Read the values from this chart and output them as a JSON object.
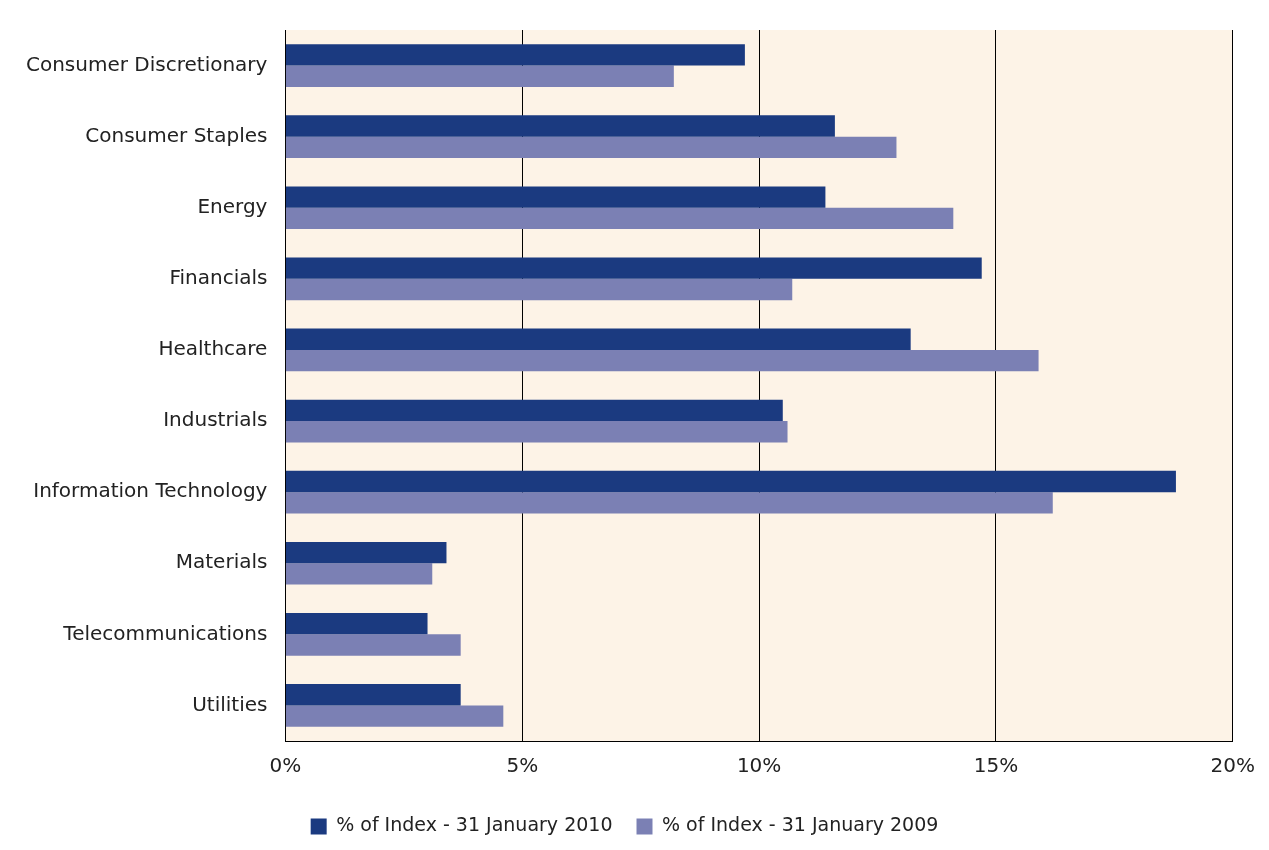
{
  "chart_data": {
    "type": "bar",
    "orientation": "horizontal",
    "categories": [
      "Consumer Discretionary",
      "Consumer Staples",
      "Energy",
      "Financials",
      "Healthcare",
      "Industrials",
      "Information Technology",
      "Materials",
      "Telecommunications",
      "Utilities"
    ],
    "series": [
      {
        "name": "% of Index - 31 January 2010",
        "color": "#1b3a80",
        "values": [
          9.7,
          11.6,
          11.4,
          14.7,
          13.2,
          10.5,
          18.8,
          3.4,
          3.0,
          3.7
        ]
      },
      {
        "name": "% of Index - 31 January 2009",
        "color": "#7b80b4",
        "values": [
          8.2,
          12.9,
          14.1,
          10.7,
          15.9,
          10.6,
          16.2,
          3.1,
          3.7,
          4.6
        ]
      }
    ],
    "xlim": [
      0,
      20
    ],
    "xticks": [
      {
        "value": 0,
        "label": "0%"
      },
      {
        "value": 5,
        "label": "5%"
      },
      {
        "value": 10,
        "label": "10%"
      },
      {
        "value": 15,
        "label": "15%"
      },
      {
        "value": 20,
        "label": "20%"
      }
    ],
    "grid": "x",
    "legend": "bottom"
  }
}
